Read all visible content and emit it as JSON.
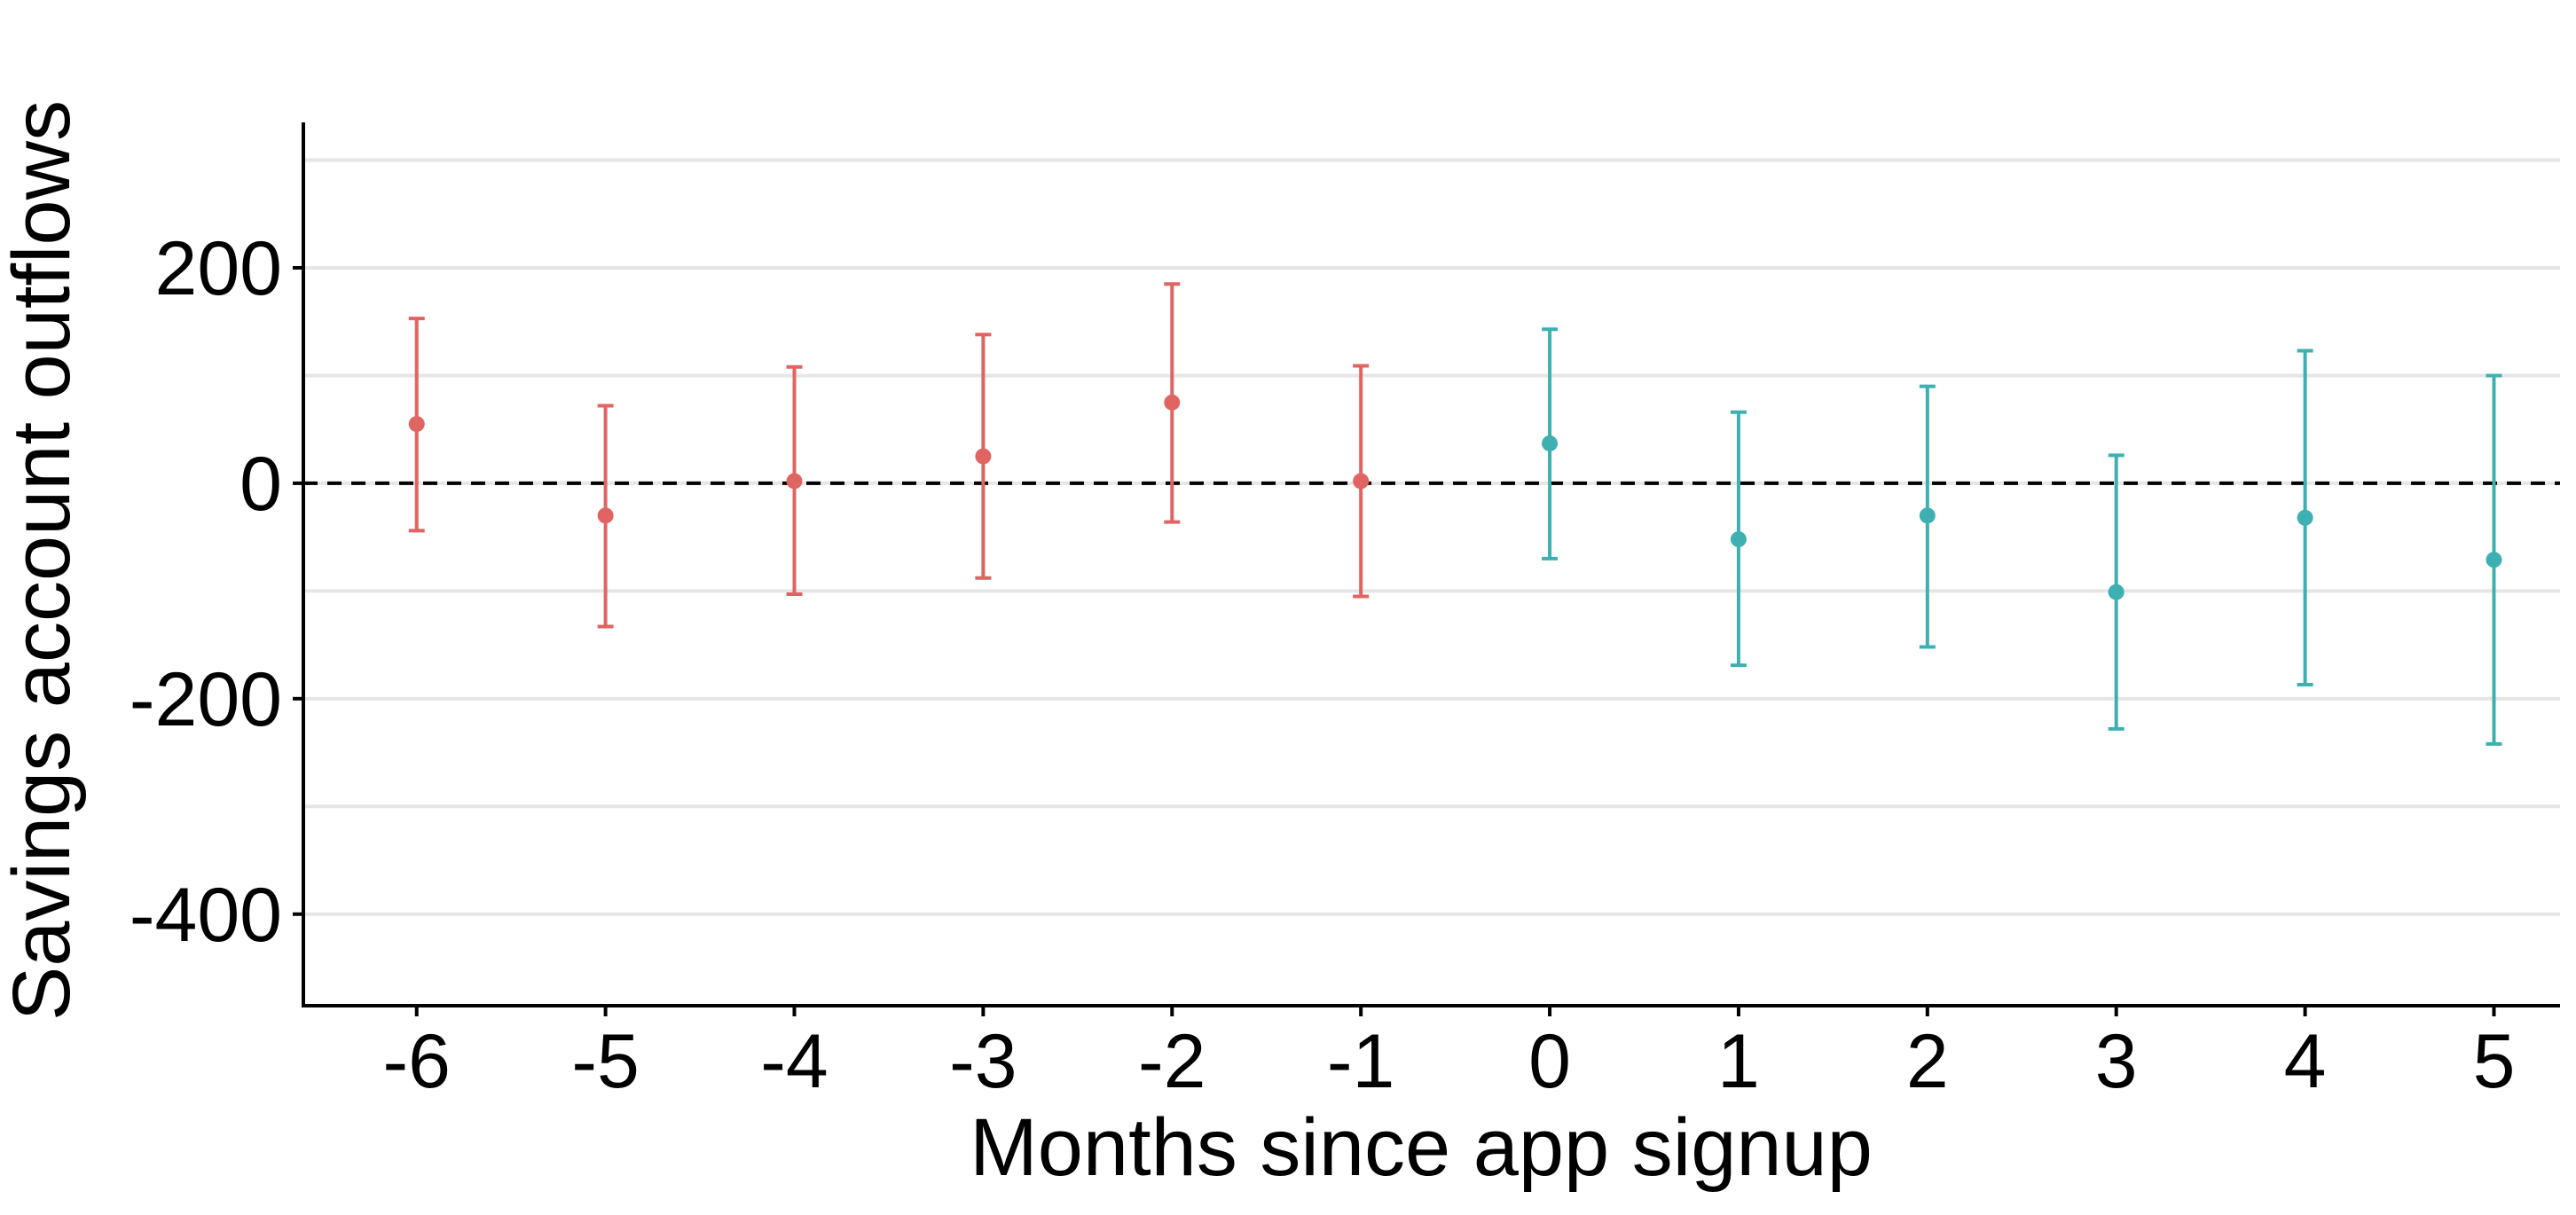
{
  "chart_data": {
    "type": "scatter",
    "title": "",
    "xlabel": "Months since app signup",
    "ylabel": "Savings account outflows",
    "x_ticks": [
      "-6",
      "-5",
      "-4",
      "-3",
      "-2",
      "-1",
      "0",
      "1",
      "2",
      "3",
      "4",
      "5"
    ],
    "y_ticks": [
      "200",
      "0",
      "-200",
      "-400"
    ],
    "y_tick_values": [
      200,
      0,
      -200,
      -400
    ],
    "ylim": [
      -485,
      335
    ],
    "xlim": [
      -6.6,
      5.35
    ],
    "gridlines_y": [
      -400,
      -300,
      -200,
      -100,
      0,
      100,
      200,
      300
    ],
    "reference_line_y": 0,
    "reference_line_style": "dashed",
    "colors": {
      "pre": "#E06462",
      "post": "#3FB0B1"
    },
    "points": [
      {
        "x": -6,
        "y": 55,
        "lo": -44,
        "hi": 153,
        "group": "pre"
      },
      {
        "x": -5,
        "y": -30,
        "lo": -133,
        "hi": 72,
        "group": "pre"
      },
      {
        "x": -4,
        "y": 2,
        "lo": -103,
        "hi": 108,
        "group": "pre"
      },
      {
        "x": -3,
        "y": 25,
        "lo": -88,
        "hi": 138,
        "group": "pre"
      },
      {
        "x": -2,
        "y": 75,
        "lo": -36,
        "hi": 185,
        "group": "pre"
      },
      {
        "x": -1,
        "y": 2,
        "lo": -105,
        "hi": 109,
        "group": "pre"
      },
      {
        "x": 0,
        "y": 37,
        "lo": -70,
        "hi": 143,
        "group": "post"
      },
      {
        "x": 1,
        "y": -52,
        "lo": -169,
        "hi": 66,
        "group": "post"
      },
      {
        "x": 2,
        "y": -30,
        "lo": -152,
        "hi": 90,
        "group": "post"
      },
      {
        "x": 3,
        "y": -101,
        "lo": -228,
        "hi": 26,
        "group": "post"
      },
      {
        "x": 4,
        "y": -32,
        "lo": -187,
        "hi": 123,
        "group": "post"
      },
      {
        "x": 5,
        "y": -71,
        "lo": -242,
        "hi": 100,
        "group": "post"
      }
    ]
  }
}
